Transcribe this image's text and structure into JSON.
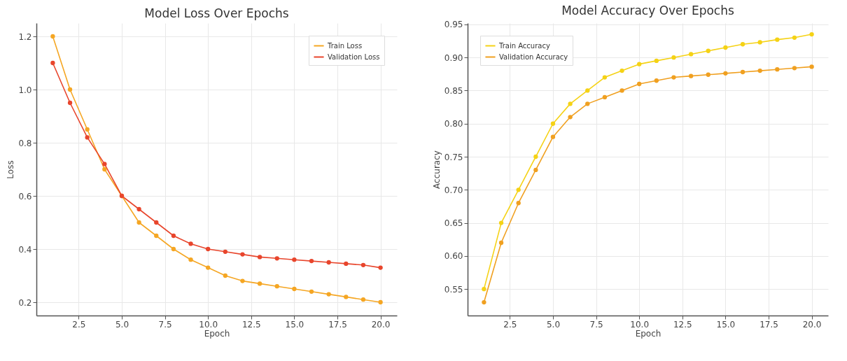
{
  "chart_data": [
    {
      "type": "line",
      "title": "Model Loss Over Epochs",
      "xlabel": "Epoch",
      "ylabel": "Loss",
      "x": [
        1,
        2,
        3,
        4,
        5,
        6,
        7,
        8,
        9,
        10,
        11,
        12,
        13,
        14,
        15,
        16,
        17,
        18,
        19,
        20
      ],
      "series": [
        {
          "name": "Train Loss",
          "color": "#f5a623",
          "values": [
            1.2,
            1.0,
            0.85,
            0.7,
            0.6,
            0.5,
            0.45,
            0.4,
            0.36,
            0.33,
            0.3,
            0.28,
            0.27,
            0.26,
            0.25,
            0.24,
            0.23,
            0.22,
            0.21,
            0.2
          ]
        },
        {
          "name": "Validation Loss",
          "color": "#e8452c",
          "values": [
            1.1,
            0.95,
            0.82,
            0.72,
            0.6,
            0.55,
            0.5,
            0.45,
            0.42,
            0.4,
            0.39,
            0.38,
            0.37,
            0.365,
            0.36,
            0.355,
            0.35,
            0.345,
            0.34,
            0.33
          ]
        }
      ],
      "xlim": [
        0.05,
        20.95
      ],
      "xticks": [
        2.5,
        {
          "value": 5,
          "label": "5.0"
        },
        7.5,
        {
          "value": 10,
          "label": "10.0"
        },
        12.5,
        {
          "value": 15,
          "label": "15.0"
        },
        17.5,
        {
          "value": 20,
          "label": "20.0"
        }
      ],
      "ylim": [
        0.15,
        1.25
      ],
      "yticks": [
        0.2,
        0.4,
        0.6,
        0.8,
        {
          "value": 1,
          "label": "1.0"
        },
        1.2
      ],
      "grid": true,
      "legend": "top right",
      "marker": "circle",
      "line_style": "solid"
    },
    {
      "type": "line",
      "title": "Model Accuracy Over Epochs",
      "xlabel": "Epoch",
      "ylabel": "Accuracy",
      "x": [
        1,
        2,
        3,
        4,
        5,
        6,
        7,
        8,
        9,
        10,
        11,
        12,
        13,
        14,
        15,
        16,
        17,
        18,
        19,
        20
      ],
      "series": [
        {
          "name": "Train Accuracy",
          "color": "#f5d215",
          "values": [
            0.55,
            0.65,
            0.7,
            0.75,
            0.8,
            0.83,
            0.85,
            0.87,
            0.88,
            0.89,
            0.895,
            0.9,
            0.905,
            0.91,
            0.915,
            0.92,
            0.923,
            0.927,
            0.93,
            0.935
          ]
        },
        {
          "name": "Validation Accuracy",
          "color": "#f0a020",
          "values": [
            0.53,
            0.62,
            0.68,
            0.73,
            0.78,
            0.81,
            0.83,
            0.84,
            0.85,
            0.86,
            0.865,
            0.87,
            0.872,
            0.874,
            0.876,
            0.878,
            0.88,
            0.882,
            0.884,
            0.886
          ]
        }
      ],
      "xlim": [
        0.05,
        20.95
      ],
      "xticks": [
        2.5,
        {
          "value": 5,
          "label": "5.0"
        },
        7.5,
        {
          "value": 10,
          "label": "10.0"
        },
        12.5,
        {
          "value": 15,
          "label": "15.0"
        },
        17.5,
        {
          "value": 20,
          "label": "20.0"
        }
      ],
      "ylim": [
        0.51,
        0.952
      ],
      "yticks": [
        0.55,
        {
          "value": 0.6,
          "label": "0.60"
        },
        0.65,
        {
          "value": 0.7,
          "label": "0.70"
        },
        0.75,
        {
          "value": 0.8,
          "label": "0.80"
        },
        0.85,
        {
          "value": 0.9,
          "label": "0.90"
        },
        0.95
      ],
      "grid": true,
      "legend": "top left",
      "marker": "circle",
      "line_style": "solid"
    }
  ]
}
